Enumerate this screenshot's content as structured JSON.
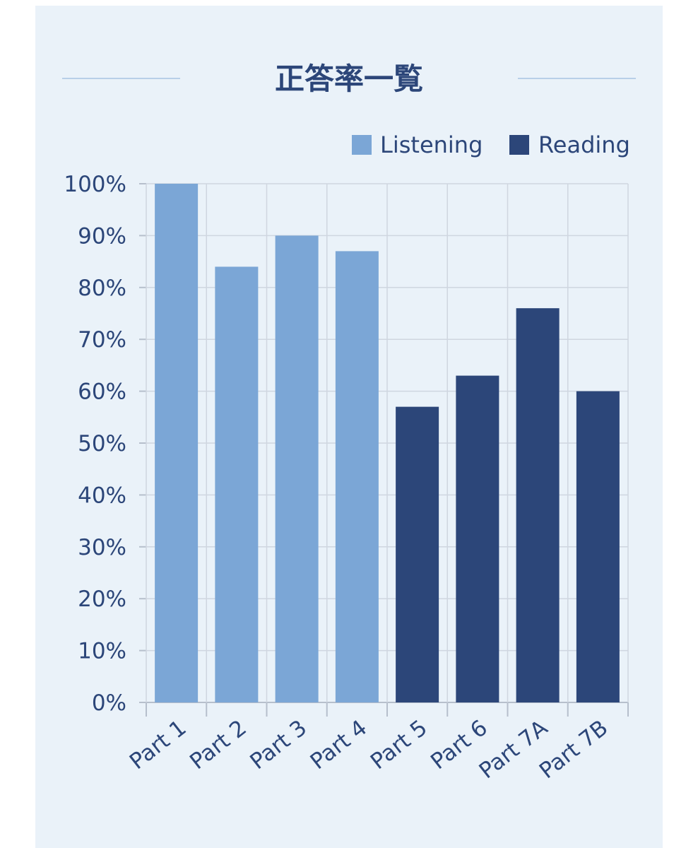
{
  "chart_data": {
    "type": "bar",
    "title": "正答率一覧",
    "categories": [
      "Part 1",
      "Part 2",
      "Part 3",
      "Part 4",
      "Part 5",
      "Part 6",
      "Part 7A",
      "Part 7B"
    ],
    "series": [
      {
        "name": "Listening",
        "color": "#7ba6d6",
        "values": [
          100,
          84,
          90,
          87,
          null,
          null,
          null,
          null
        ]
      },
      {
        "name": "Reading",
        "color": "#2c4679",
        "values": [
          null,
          null,
          null,
          null,
          57,
          63,
          76,
          60
        ]
      }
    ],
    "y_ticks": [
      "0%",
      "10%",
      "20%",
      "30%",
      "40%",
      "50%",
      "60%",
      "70%",
      "80%",
      "90%",
      "100%"
    ],
    "ylim": [
      0,
      100
    ],
    "grid": true,
    "legend_position": "top-right",
    "colors": {
      "card_background": "#eaf2f9",
      "title": "#2c4679",
      "title_rule": "#b8cfe8",
      "text": "#2c4679",
      "grid": "#cfd6e0",
      "axis": "#b6bfcc"
    }
  }
}
